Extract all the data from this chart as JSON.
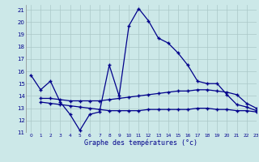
{
  "xlabel": "Graphe des températures (°c)",
  "background_color": "#cce8e8",
  "line_color": "#00008b",
  "grid_color": "#aac8c8",
  "xlim": [
    -0.5,
    23
  ],
  "ylim": [
    11,
    21.4
  ],
  "yticks": [
    11,
    12,
    13,
    14,
    15,
    16,
    17,
    18,
    19,
    20,
    21
  ],
  "xticks": [
    0,
    1,
    2,
    3,
    4,
    5,
    6,
    7,
    8,
    9,
    10,
    11,
    12,
    13,
    14,
    15,
    16,
    17,
    18,
    19,
    20,
    21,
    22,
    23
  ],
  "series": [
    {
      "x": [
        0,
        1,
        2,
        3,
        4,
        5,
        6,
        7,
        8,
        9,
        10,
        11,
        12,
        13,
        14,
        15,
        16,
        17,
        18,
        19,
        20,
        21,
        22,
        23
      ],
      "y": [
        15.7,
        14.5,
        15.2,
        13.5,
        12.5,
        11.2,
        12.5,
        12.7,
        16.5,
        14.0,
        19.7,
        21.1,
        20.1,
        18.7,
        18.3,
        17.5,
        16.5,
        15.2,
        15.0,
        15.0,
        14.1,
        13.3,
        13.1,
        12.8
      ]
    },
    {
      "x": [
        1,
        2,
        3,
        4,
        5,
        6,
        7,
        8,
        9,
        10,
        11,
        12,
        13,
        14,
        15,
        16,
        17,
        18,
        19,
        20,
        21,
        22,
        23
      ],
      "y": [
        13.8,
        13.8,
        13.7,
        13.6,
        13.6,
        13.6,
        13.6,
        13.7,
        13.8,
        13.9,
        14.0,
        14.1,
        14.2,
        14.3,
        14.4,
        14.4,
        14.5,
        14.5,
        14.4,
        14.3,
        14.1,
        13.4,
        13.0
      ]
    },
    {
      "x": [
        1,
        2,
        3,
        4,
        5,
        6,
        7,
        8,
        9,
        10,
        11,
        12,
        13,
        14,
        15,
        16,
        17,
        18,
        19,
        20,
        21,
        22,
        23
      ],
      "y": [
        13.5,
        13.4,
        13.3,
        13.2,
        13.1,
        13.0,
        12.9,
        12.8,
        12.8,
        12.8,
        12.8,
        12.9,
        12.9,
        12.9,
        12.9,
        12.9,
        13.0,
        13.0,
        12.9,
        12.9,
        12.8,
        12.8,
        12.7
      ]
    }
  ]
}
